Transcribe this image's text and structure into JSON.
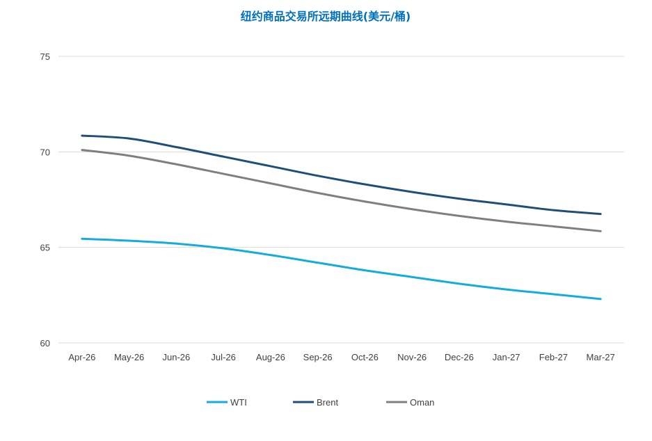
{
  "chart_data": {
    "type": "line",
    "title": "纽约商品交易所远期曲线(美元/桶)",
    "xlabel": "",
    "ylabel": "",
    "categories": [
      "Apr-26",
      "May-26",
      "Jun-26",
      "Jul-26",
      "Aug-26",
      "Sep-26",
      "Oct-26",
      "Nov-26",
      "Dec-26",
      "Jan-27",
      "Feb-27",
      "Mar-27"
    ],
    "ylim": [
      60,
      75
    ],
    "yticks": [
      60,
      65,
      70,
      75
    ],
    "grid": true,
    "legend_position": "bottom",
    "series": [
      {
        "name": "WTI",
        "color": "#13ABE0",
        "values": [
          65.45,
          65.35,
          65.2,
          64.95,
          64.6,
          64.2,
          63.8,
          63.45,
          63.1,
          62.8,
          62.55,
          62.3
        ]
      },
      {
        "name": "Brent",
        "color": "#1F4E79",
        "values": [
          70.85,
          70.7,
          70.25,
          69.75,
          69.25,
          68.75,
          68.3,
          67.9,
          67.55,
          67.25,
          66.95,
          66.75
        ]
      },
      {
        "name": "Oman",
        "color": "#7F7F7F",
        "values": [
          70.1,
          69.8,
          69.35,
          68.85,
          68.35,
          67.85,
          67.4,
          67.0,
          66.65,
          66.35,
          66.1,
          65.85
        ]
      }
    ],
    "colors": {
      "title": "#0070C0",
      "grid": "#D9D9D9",
      "axis_text": "#404040"
    }
  }
}
